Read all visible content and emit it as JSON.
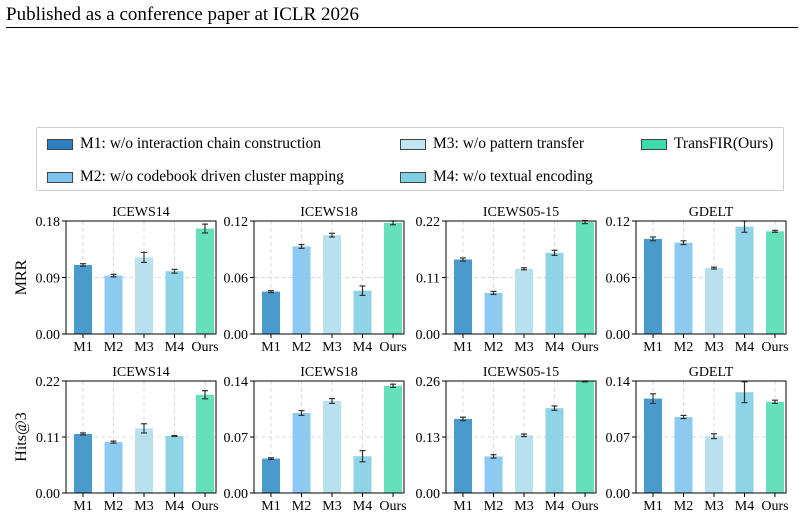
{
  "header": {
    "text": "Published as a conference paper at ICLR 2026"
  },
  "colors": {
    "M1": "#4a9acd",
    "M2": "#8ccaf2",
    "M3": "#b8e0ee",
    "M4": "#8ed3e6",
    "Ours": "#66e0bb"
  },
  "legend": [
    {
      "key": "M1",
      "label": "M1: w/o interaction chain construction",
      "color": "#2e7fbf"
    },
    {
      "key": "M3",
      "label": "M3: w/o pattern transfer",
      "color": "#bfe6f2"
    },
    {
      "key": "Ours",
      "label": "TransFIR(Ours)",
      "color": "#3ddbaa"
    },
    {
      "key": "M2",
      "label": "M2: w/o codebook driven cluster mapping",
      "color": "#7cc3ee"
    },
    {
      "key": "M4",
      "label": "M4: w/o textual encoding",
      "color": "#7fcfe3"
    }
  ],
  "chart_data": [
    {
      "type": "bar",
      "title": "ICEWS14",
      "ylabel": "MRR",
      "categories": [
        "M1",
        "M2",
        "M3",
        "M4",
        "Ours"
      ],
      "values": [
        0.11,
        0.093,
        0.122,
        0.1,
        0.168
      ],
      "errors": [
        0.002,
        0.002,
        0.008,
        0.003,
        0.007
      ],
      "ylim": [
        0,
        0.18
      ],
      "yticks": [
        "0.00",
        "0.09",
        "0.18"
      ]
    },
    {
      "type": "bar",
      "title": "ICEWS18",
      "ylabel": "",
      "categories": [
        "M1",
        "M2",
        "M3",
        "M4",
        "Ours"
      ],
      "values": [
        0.045,
        0.093,
        0.105,
        0.046,
        0.118
      ],
      "errors": [
        0.001,
        0.002,
        0.002,
        0.005,
        0.002
      ],
      "ylim": [
        0,
        0.12
      ],
      "yticks": [
        "0.00",
        "0.06",
        "0.12"
      ]
    },
    {
      "type": "bar",
      "title": "ICEWS05-15",
      "ylabel": "",
      "categories": [
        "M1",
        "M2",
        "M3",
        "M4",
        "Ours"
      ],
      "values": [
        0.145,
        0.08,
        0.127,
        0.158,
        0.218
      ],
      "errors": [
        0.003,
        0.003,
        0.002,
        0.005,
        0.003
      ],
      "ylim": [
        0,
        0.22
      ],
      "yticks": [
        "0.00",
        "0.11",
        "0.22"
      ]
    },
    {
      "type": "bar",
      "title": "GDELT",
      "ylabel": "",
      "categories": [
        "M1",
        "M2",
        "M3",
        "M4",
        "Ours"
      ],
      "values": [
        0.101,
        0.097,
        0.07,
        0.114,
        0.109
      ],
      "errors": [
        0.002,
        0.002,
        0.001,
        0.006,
        0.001
      ],
      "ylim": [
        0,
        0.12
      ],
      "yticks": [
        "0.00",
        "0.06",
        "0.12"
      ]
    },
    {
      "type": "bar",
      "title": "ICEWS14",
      "ylabel": "Hits@3",
      "categories": [
        "M1",
        "M2",
        "M3",
        "M4",
        "Ours"
      ],
      "values": [
        0.116,
        0.1,
        0.127,
        0.112,
        0.193
      ],
      "errors": [
        0.002,
        0.002,
        0.009,
        0.001,
        0.008
      ],
      "ylim": [
        0,
        0.22
      ],
      "yticks": [
        "0.00",
        "0.11",
        "0.22"
      ]
    },
    {
      "type": "bar",
      "title": "ICEWS18",
      "ylabel": "",
      "categories": [
        "M1",
        "M2",
        "M3",
        "M4",
        "Ours"
      ],
      "values": [
        0.043,
        0.1,
        0.115,
        0.046,
        0.134
      ],
      "errors": [
        0.001,
        0.003,
        0.003,
        0.007,
        0.002
      ],
      "ylim": [
        0,
        0.14
      ],
      "yticks": [
        "0.00",
        "0.07",
        "0.14"
      ]
    },
    {
      "type": "bar",
      "title": "ICEWS05-15",
      "ylabel": "",
      "categories": [
        "M1",
        "M2",
        "M3",
        "M4",
        "Ours"
      ],
      "values": [
        0.172,
        0.085,
        0.134,
        0.197,
        0.259
      ],
      "errors": [
        0.004,
        0.004,
        0.003,
        0.005,
        0.001
      ],
      "ylim": [
        0,
        0.26
      ],
      "yticks": [
        "0.00",
        "0.13",
        "0.26"
      ]
    },
    {
      "type": "bar",
      "title": "GDELT",
      "ylabel": "",
      "categories": [
        "M1",
        "M2",
        "M3",
        "M4",
        "Ours"
      ],
      "values": [
        0.118,
        0.095,
        0.071,
        0.126,
        0.114
      ],
      "errors": [
        0.006,
        0.002,
        0.003,
        0.013,
        0.002
      ],
      "ylim": [
        0,
        0.14
      ],
      "yticks": [
        "0.00",
        "0.07",
        "0.14"
      ]
    }
  ]
}
